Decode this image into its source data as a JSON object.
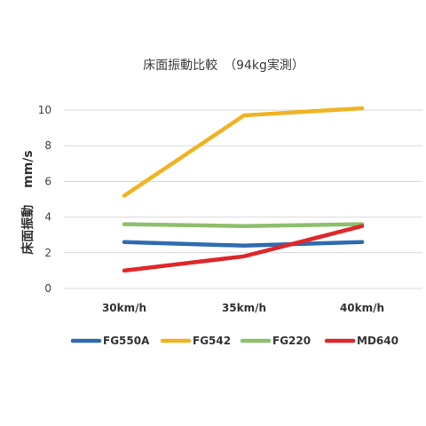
{
  "chart_data": {
    "type": "line",
    "title": "床面振動比較　（94kg実測）",
    "ylabel": "床面振動　 mm/s",
    "xlabel": "",
    "categories": [
      "30km/h",
      "35km/h",
      "40km/h"
    ],
    "ylim": [
      0,
      10
    ],
    "yticks": [
      0,
      2,
      4,
      6,
      8,
      10
    ],
    "grid": true,
    "legend_position": "bottom",
    "series": [
      {
        "name": "FG550A",
        "color": "#2e6bb0",
        "values": [
          2.6,
          2.4,
          2.6
        ]
      },
      {
        "name": "FG542",
        "color": "#f0b323",
        "values": [
          5.2,
          9.7,
          10.1
        ]
      },
      {
        "name": "FG220",
        "color": "#8dc06a",
        "values": [
          3.6,
          3.5,
          3.6
        ]
      },
      {
        "name": "MD640",
        "color": "#e0262a",
        "values": [
          1.0,
          1.8,
          3.5
        ]
      }
    ]
  }
}
